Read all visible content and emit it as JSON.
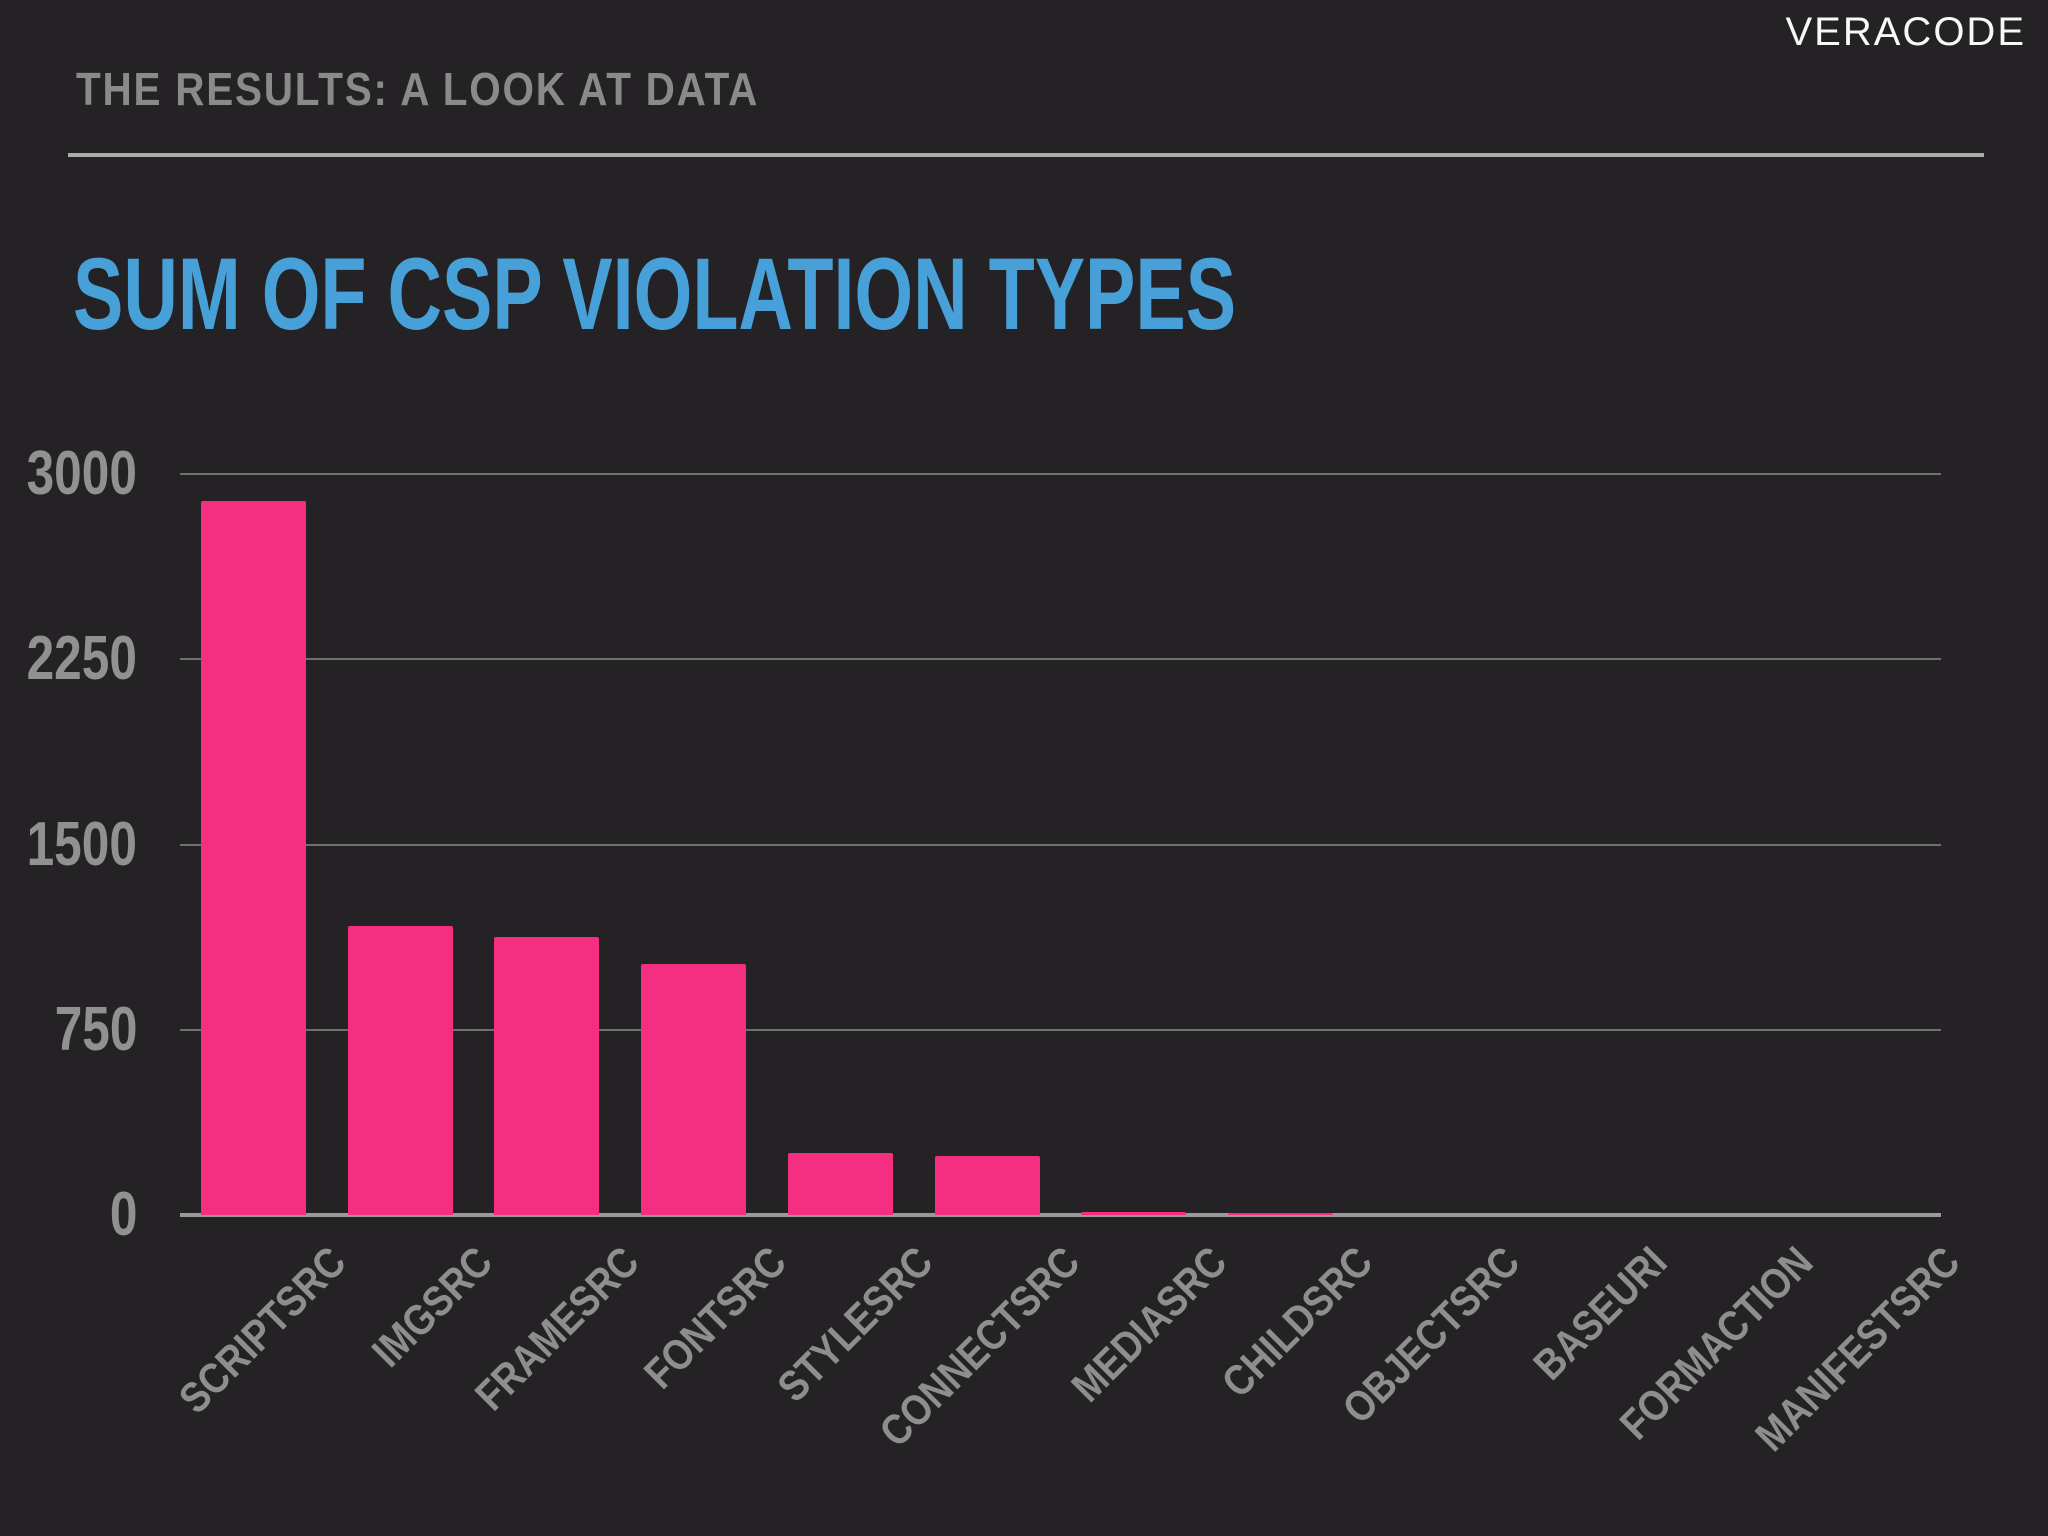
{
  "slide": {
    "kicker": "THE RESULTS: A LOOK AT DATA",
    "brand": "VERACODE",
    "title": "SUM OF CSP VIOLATION TYPES"
  },
  "colors": {
    "background": "#242224",
    "bar": "#f42f82",
    "title": "#48a0d8",
    "kicker_text": "#8a8a8a",
    "header_rule": "#ababab",
    "gridline": "#6f6f6f",
    "baseline": "#9a9a9a",
    "axis_labels": "#8e8e8e",
    "brand_text": "#f8f8f8"
  },
  "chart_data": {
    "type": "bar",
    "title": "SUM OF CSP VIOLATION TYPES",
    "categories": [
      "SCRIPTSRC",
      "IMGSRC",
      "FRAMESRC",
      "FONTSRC",
      "STYLESRC",
      "CONNECTSRC",
      "MEDIASRC",
      "CHILDSRC",
      "OBJECTSRC",
      "BASEURI",
      "FORMACTION",
      "MANIFESTSRC"
    ],
    "values": [
      2890,
      1170,
      1125,
      1015,
      250,
      240,
      12,
      10,
      0,
      0,
      0,
      0
    ],
    "y_ticks": [
      0,
      750,
      1500,
      2250,
      3000
    ],
    "ylim": [
      0,
      3000
    ],
    "xlabel": "",
    "ylabel": "",
    "grid": true,
    "legend": false,
    "bar_color": "#f42f82",
    "x_label_rotation_deg": 45
  }
}
